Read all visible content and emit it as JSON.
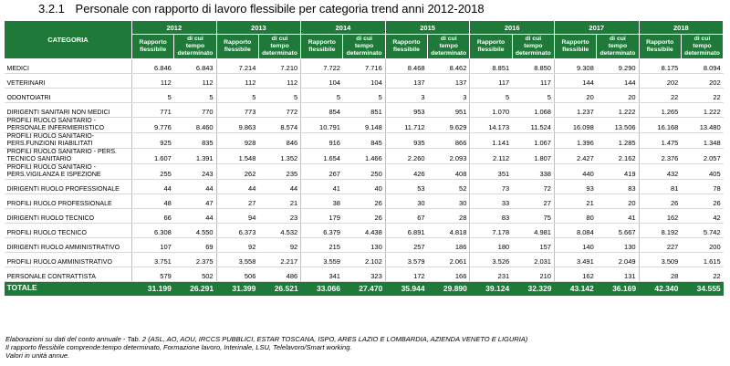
{
  "title": {
    "number": "3.2.1",
    "text": "Personale con rapporto di lavoro flessibile per categoria trend anni 2012-2018"
  },
  "table": {
    "category_header": "CATEGORIA",
    "years": [
      "2012",
      "2013",
      "2014",
      "2015",
      "2016",
      "2017",
      "2018"
    ],
    "sub_headers": [
      "Rapporto flessibile",
      "di cui tempo determinato"
    ],
    "rows": [
      {
        "label": "MEDICI",
        "values": [
          "6.846",
          "6.843",
          "7.214",
          "7.210",
          "7.722",
          "7.716",
          "8.468",
          "8.462",
          "8.851",
          "8.850",
          "9.308",
          "9.290",
          "8.175",
          "8.094"
        ]
      },
      {
        "label": "VETERINARI",
        "values": [
          "112",
          "112",
          "112",
          "112",
          "104",
          "104",
          "137",
          "137",
          "117",
          "117",
          "144",
          "144",
          "202",
          "202"
        ]
      },
      {
        "label": "ODONTOIATRI",
        "values": [
          "5",
          "5",
          "5",
          "5",
          "5",
          "5",
          "3",
          "3",
          "5",
          "5",
          "20",
          "20",
          "22",
          "22"
        ]
      },
      {
        "label": "DIRIGENTI SANITARI NON MEDICI",
        "values": [
          "771",
          "770",
          "773",
          "772",
          "854",
          "851",
          "953",
          "951",
          "1.070",
          "1.068",
          "1.237",
          "1.222",
          "1.265",
          "1.222"
        ]
      },
      {
        "label": "PROFILI RUOLO SANITARIO - PERSONALE INFERMIERISTICO",
        "values": [
          "9.776",
          "8.460",
          "9.863",
          "8.574",
          "10.791",
          "9.148",
          "11.712",
          "9.629",
          "14.173",
          "11.524",
          "16.098",
          "13.506",
          "16.168",
          "13.480"
        ]
      },
      {
        "label": "PROFILI RUOLO SANITARIO-PERS.FUNZIONI RIABILITATI",
        "values": [
          "925",
          "835",
          "928",
          "846",
          "916",
          "845",
          "935",
          "866",
          "1.141",
          "1.067",
          "1.396",
          "1.285",
          "1.475",
          "1.348"
        ]
      },
      {
        "label": "PROFILI RUOLO SANITARIO - PERS. TECNICO SANITARIO",
        "values": [
          "1.607",
          "1.391",
          "1.548",
          "1.352",
          "1.654",
          "1.466",
          "2.260",
          "2.093",
          "2.112",
          "1.807",
          "2.427",
          "2.162",
          "2.376",
          "2.057"
        ]
      },
      {
        "label": "PROFILI RUOLO SANITARIO - PERS.VIGILANZA E ISPEZIONE",
        "values": [
          "255",
          "243",
          "262",
          "235",
          "267",
          "250",
          "426",
          "408",
          "351",
          "338",
          "440",
          "419",
          "432",
          "405"
        ]
      },
      {
        "label": "DIRIGENTI RUOLO PROFESSIONALE",
        "values": [
          "44",
          "44",
          "44",
          "44",
          "41",
          "40",
          "53",
          "52",
          "73",
          "72",
          "93",
          "83",
          "81",
          "78"
        ]
      },
      {
        "label": "PROFILI RUOLO PROFESSIONALE",
        "values": [
          "48",
          "47",
          "27",
          "21",
          "38",
          "26",
          "30",
          "30",
          "33",
          "27",
          "21",
          "20",
          "26",
          "26"
        ]
      },
      {
        "label": "DIRIGENTI RUOLO TECNICO",
        "values": [
          "66",
          "44",
          "94",
          "23",
          "179",
          "26",
          "67",
          "28",
          "83",
          "75",
          "80",
          "41",
          "162",
          "42"
        ]
      },
      {
        "label": "PROFILI RUOLO TECNICO",
        "values": [
          "6.308",
          "4.550",
          "6.373",
          "4.532",
          "6.379",
          "4.438",
          "6.891",
          "4.818",
          "7.178",
          "4.981",
          "8.084",
          "5.667",
          "8.192",
          "5.742"
        ]
      },
      {
        "label": "DIRIGENTI RUOLO AMMINISTRATIVO",
        "values": [
          "107",
          "69",
          "92",
          "92",
          "215",
          "130",
          "257",
          "186",
          "180",
          "157",
          "140",
          "130",
          "227",
          "200"
        ]
      },
      {
        "label": "PROFILI RUOLO AMMINISTRATIVO",
        "values": [
          "3.751",
          "2.375",
          "3.558",
          "2.217",
          "3.559",
          "2.102",
          "3.579",
          "2.061",
          "3.526",
          "2.031",
          "3.491",
          "2.049",
          "3.509",
          "1.615"
        ]
      },
      {
        "label": "PERSONALE CONTRATTISTA",
        "values": [
          "579",
          "502",
          "506",
          "486",
          "341",
          "323",
          "172",
          "166",
          "231",
          "210",
          "162",
          "131",
          "28",
          "22"
        ]
      }
    ],
    "total": {
      "label": "TOTALE",
      "values": [
        "31.199",
        "26.291",
        "31.399",
        "26.521",
        "33.066",
        "27.470",
        "35.944",
        "29.890",
        "39.124",
        "32.329",
        "43.142",
        "36.169",
        "42.340",
        "34.555"
      ]
    }
  },
  "notes": [
    "Elaborazioni su dati del conto annuale - Tab. 2 (ASL, AO, AOU, IRCCS PUBBLICI, ESTAR TOSCANA, ISPO, ARES LAZIO E LOMBARDIA, AZIENDA VENETO E LIGURIA)",
    "Il rapporto flessibile comprende:tempo determinato, Formazione lavoro, Interinale, LSU, Telelavoro/Smart working.",
    "Valori in unità annue."
  ],
  "colors": {
    "header_green": "#1f7a3a",
    "header_text": "#ffffff"
  }
}
